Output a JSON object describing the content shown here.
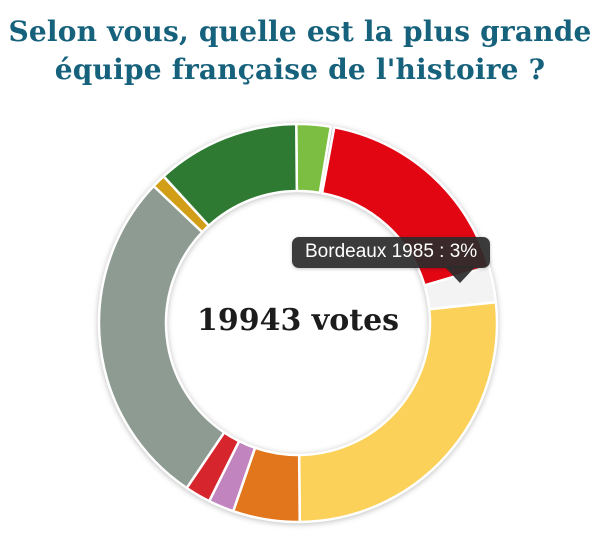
{
  "title": {
    "line1": "Selon vous, quelle est la plus grande",
    "line2": "équipe française de l'histoire ?"
  },
  "colors": {
    "background": "#ffffff",
    "title": "#16617C",
    "center_text": "#1c1c1c",
    "tooltip_bg": "rgba(44,44,44,0.93)",
    "tooltip_text": "#ffffff",
    "segment_stroke": "#ffffff"
  },
  "chart_data": {
    "type": "pie",
    "donut": true,
    "title": "Selon vous, quelle est la plus grande équipe française de l'histoire ?",
    "center_text": "19943 votes",
    "total_votes": 19943,
    "legend": "none",
    "rotation_note": "segments listed clockwise starting at 12 o'clock, degrees measured clockwise from top",
    "tooltip": {
      "label": "Bordeaux 1985",
      "value_percent": 3,
      "text": "Bordeaux 1985 : 3%"
    },
    "segments": [
      {
        "label": "",
        "color": "#7CBE41",
        "percent": 2.9,
        "start_deg": 359.5,
        "end_deg": 369.5,
        "highlighted": false
      },
      {
        "label": "",
        "color": "#E20613",
        "percent": 17.5,
        "start_deg": 10.5,
        "end_deg": 73.5,
        "highlighted": false
      },
      {
        "label": "Bordeaux 1985",
        "color": "#F3F3F3",
        "percent": 3,
        "start_deg": 73.5,
        "end_deg": 84.0,
        "highlighted": true
      },
      {
        "label": "",
        "color": "#FBD159",
        "percent": 26.5,
        "start_deg": 84.0,
        "end_deg": 179.5,
        "highlighted": false
      },
      {
        "label": "",
        "color": "#E2761D",
        "percent": 5.4,
        "start_deg": 179.5,
        "end_deg": 199.0,
        "highlighted": false
      },
      {
        "label": "",
        "color": "#C184BE",
        "percent": 2.1,
        "start_deg": 199.0,
        "end_deg": 206.5,
        "highlighted": false
      },
      {
        "label": "",
        "color": "#D6252C",
        "percent": 2.1,
        "start_deg": 206.5,
        "end_deg": 214.0,
        "highlighted": false
      },
      {
        "label": "",
        "color": "#8E9B92",
        "percent": 27.6,
        "start_deg": 214.0,
        "end_deg": 313.5,
        "highlighted": false
      },
      {
        "label": "",
        "color": "#D29E18",
        "percent": 1.1,
        "start_deg": 313.5,
        "end_deg": 317.5,
        "highlighted": false
      },
      {
        "label": "",
        "color": "#2E7A33",
        "percent": 11.6,
        "start_deg": 317.5,
        "end_deg": 359.5,
        "highlighted": false
      }
    ]
  }
}
